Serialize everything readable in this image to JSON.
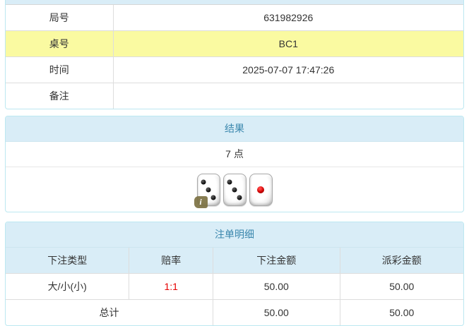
{
  "colors": {
    "panel_border": "#bce8f1",
    "panel_header_bg": "#d9edf7",
    "panel_header_text": "#3a87ad",
    "row_divider": "#dddddd",
    "highlight_row_bg": "#fafaa1",
    "body_text": "#333333",
    "odds_red": "#e60000",
    "info_badge_bg": "#7a6f3f"
  },
  "info_table": {
    "rows": [
      {
        "label": "局号",
        "value": "631982926",
        "highlight": false
      },
      {
        "label": "桌号",
        "value": "BC1",
        "highlight": true
      },
      {
        "label": "时间",
        "value": "2025-07-07 17:47:26",
        "highlight": false
      },
      {
        "label": "备注",
        "value": "",
        "highlight": false
      }
    ]
  },
  "result_panel": {
    "title": "结果",
    "points_text": "7 点",
    "dice": [
      {
        "face": 3,
        "pip_color": "black"
      },
      {
        "face": 3,
        "pip_color": "black"
      },
      {
        "face": 1,
        "pip_color": "red"
      }
    ],
    "info_badge": "i"
  },
  "bets_panel": {
    "title": "注单明细",
    "columns": [
      "下注类型",
      "赔率",
      "下注金额",
      "派彩金额"
    ],
    "rows": [
      {
        "bet_type": "大/小(小)",
        "odds": "1:1",
        "bet_amount": "50.00",
        "payout_amount": "50.00"
      }
    ],
    "total_row": {
      "label": "总计",
      "bet_amount": "50.00",
      "payout_amount": "50.00"
    }
  }
}
